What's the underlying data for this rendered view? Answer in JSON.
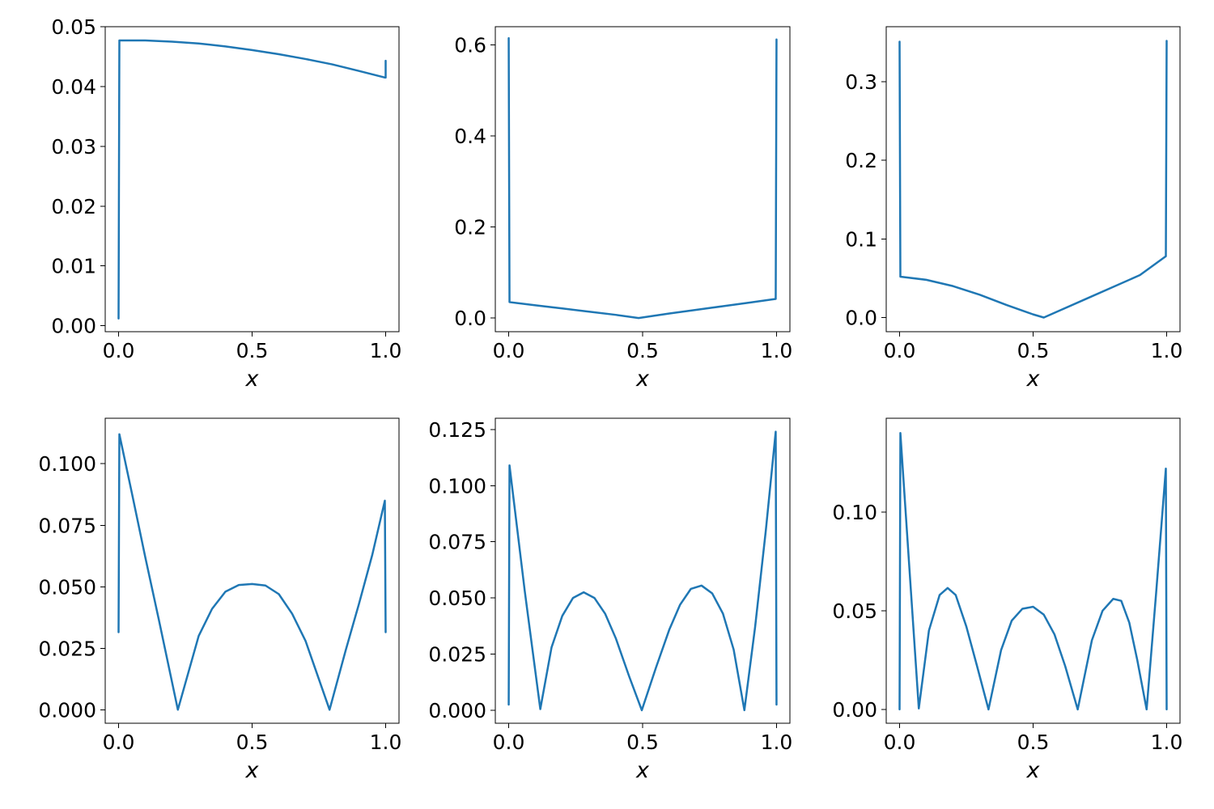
{
  "chart_data": [
    {
      "type": "line",
      "xlabel": "x",
      "xlim": [
        -0.05,
        1.05
      ],
      "ylim": [
        -0.001,
        0.05
      ],
      "xticks": [
        0.0,
        0.5,
        1.0
      ],
      "xtick_labels": [
        "0.0",
        "0.5",
        "1.0"
      ],
      "yticks": [
        0.0,
        0.01,
        0.02,
        0.03,
        0.04,
        0.05
      ],
      "ytick_labels": [
        "0.00",
        "0.01",
        "0.02",
        "0.03",
        "0.04",
        "0.05"
      ],
      "grid": false,
      "series": [
        {
          "color": "#1f77b4",
          "x": [
            0.0,
            0.003,
            0.05,
            0.1,
            0.2,
            0.3,
            0.4,
            0.5,
            0.6,
            0.7,
            0.8,
            0.9,
            0.997,
            1.0,
            1.0
          ],
          "y": [
            0.0012,
            0.0477,
            0.0477,
            0.0477,
            0.0475,
            0.0472,
            0.0467,
            0.0461,
            0.0454,
            0.0446,
            0.0437,
            0.0426,
            0.0415,
            0.0415,
            0.0443
          ]
        }
      ]
    },
    {
      "type": "line",
      "xlabel": "x",
      "xlim": [
        -0.05,
        1.05
      ],
      "ylim": [
        -0.03,
        0.64
      ],
      "xticks": [
        0.0,
        0.5,
        1.0
      ],
      "xtick_labels": [
        "0.0",
        "0.5",
        "1.0"
      ],
      "yticks": [
        0.0,
        0.2,
        0.4,
        0.6
      ],
      "ytick_labels": [
        "0.0",
        "0.2",
        "0.4",
        "0.6"
      ],
      "grid": false,
      "series": [
        {
          "color": "#1f77b4",
          "x": [
            0.0,
            0.003,
            0.1,
            0.2,
            0.3,
            0.4,
            0.485,
            0.6,
            0.7,
            0.8,
            0.9,
            0.997,
            1.0
          ],
          "y": [
            0.615,
            0.035,
            0.028,
            0.021,
            0.014,
            0.007,
            0.0,
            0.01,
            0.018,
            0.026,
            0.034,
            0.042,
            0.612
          ]
        }
      ]
    },
    {
      "type": "line",
      "xlabel": "x",
      "xlim": [
        -0.05,
        1.05
      ],
      "ylim": [
        -0.018,
        0.37
      ],
      "xticks": [
        0.0,
        0.5,
        1.0
      ],
      "xtick_labels": [
        "0.0",
        "0.5",
        "1.0"
      ],
      "yticks": [
        0.0,
        0.1,
        0.2,
        0.3
      ],
      "ytick_labels": [
        "0.0",
        "0.1",
        "0.2",
        "0.3"
      ],
      "grid": false,
      "series": [
        {
          "color": "#1f77b4",
          "x": [
            0.0,
            0.003,
            0.1,
            0.2,
            0.3,
            0.4,
            0.5,
            0.54,
            0.6,
            0.7,
            0.8,
            0.9,
            0.997,
            1.0
          ],
          "y": [
            0.351,
            0.052,
            0.048,
            0.04,
            0.029,
            0.016,
            0.004,
            0.0,
            0.009,
            0.024,
            0.039,
            0.054,
            0.078,
            0.352
          ]
        }
      ]
    },
    {
      "type": "line",
      "xlabel": "x",
      "xlim": [
        -0.05,
        1.05
      ],
      "ylim": [
        -0.0055,
        0.1185
      ],
      "xticks": [
        0.0,
        0.5,
        1.0
      ],
      "xtick_labels": [
        "0.0",
        "0.5",
        "1.0"
      ],
      "yticks": [
        0.0,
        0.025,
        0.05,
        0.075,
        0.1
      ],
      "ytick_labels": [
        "0.000",
        "0.025",
        "0.050",
        "0.075",
        "0.100"
      ],
      "grid": false,
      "series": [
        {
          "color": "#1f77b4",
          "x": [
            0.0,
            0.003,
            0.05,
            0.1,
            0.15,
            0.222,
            0.3,
            0.35,
            0.4,
            0.45,
            0.5,
            0.55,
            0.6,
            0.65,
            0.7,
            0.79,
            0.85,
            0.9,
            0.95,
            0.997,
            1.0
          ],
          "y": [
            0.0315,
            0.112,
            0.088,
            0.062,
            0.037,
            0.0,
            0.03,
            0.041,
            0.048,
            0.0507,
            0.0511,
            0.0505,
            0.047,
            0.039,
            0.028,
            0.0,
            0.024,
            0.043,
            0.063,
            0.085,
            0.0315
          ]
        }
      ]
    },
    {
      "type": "line",
      "xlabel": "x",
      "xlim": [
        -0.05,
        1.05
      ],
      "ylim": [
        -0.0058,
        0.13
      ],
      "xticks": [
        0.0,
        0.5,
        1.0
      ],
      "xtick_labels": [
        "0.0",
        "0.5",
        "1.0"
      ],
      "yticks": [
        0.0,
        0.025,
        0.05,
        0.075,
        0.1,
        0.125
      ],
      "ytick_labels": [
        "0.000",
        "0.025",
        "0.050",
        "0.075",
        "0.100",
        "0.125"
      ],
      "grid": false,
      "series": [
        {
          "color": "#1f77b4",
          "x": [
            0.0,
            0.003,
            0.06,
            0.118,
            0.16,
            0.2,
            0.24,
            0.28,
            0.32,
            0.36,
            0.4,
            0.45,
            0.497,
            0.55,
            0.6,
            0.64,
            0.68,
            0.72,
            0.76,
            0.8,
            0.84,
            0.88,
            0.92,
            0.96,
            0.997,
            1.0
          ],
          "y": [
            0.0025,
            0.109,
            0.053,
            0.0005,
            0.028,
            0.042,
            0.05,
            0.0525,
            0.05,
            0.043,
            0.032,
            0.015,
            0.0,
            0.019,
            0.036,
            0.047,
            0.054,
            0.0555,
            0.052,
            0.043,
            0.027,
            0.0,
            0.037,
            0.08,
            0.124,
            0.0025
          ]
        }
      ]
    },
    {
      "type": "line",
      "xlabel": "x",
      "xlim": [
        -0.05,
        1.05
      ],
      "ylim": [
        -0.007,
        0.1475
      ],
      "xticks": [
        0.0,
        0.5,
        1.0
      ],
      "xtick_labels": [
        "0.0",
        "0.5",
        "1.0"
      ],
      "yticks": [
        0.0,
        0.05,
        0.1
      ],
      "ytick_labels": [
        "0.00",
        "0.05",
        "0.10"
      ],
      "grid": false,
      "series": [
        {
          "color": "#1f77b4",
          "x": [
            0.0,
            0.003,
            0.04,
            0.072,
            0.11,
            0.15,
            0.18,
            0.21,
            0.25,
            0.29,
            0.333,
            0.38,
            0.42,
            0.46,
            0.5,
            0.54,
            0.58,
            0.62,
            0.667,
            0.72,
            0.76,
            0.8,
            0.83,
            0.86,
            0.89,
            0.925,
            0.96,
            0.997,
            1.0
          ],
          "y": [
            0.0,
            0.14,
            0.065,
            0.0005,
            0.04,
            0.058,
            0.0615,
            0.058,
            0.042,
            0.022,
            0.0,
            0.03,
            0.045,
            0.051,
            0.052,
            0.048,
            0.038,
            0.022,
            0.0,
            0.035,
            0.05,
            0.056,
            0.055,
            0.044,
            0.025,
            0.0,
            0.058,
            0.122,
            0.0
          ]
        }
      ]
    }
  ]
}
